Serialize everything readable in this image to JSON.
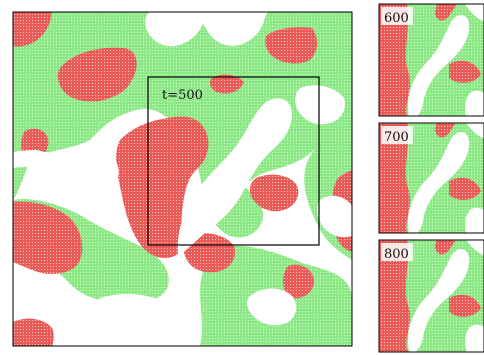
{
  "colors": {
    "red": "#ea5a57",
    "green": "#8de886",
    "frame": "#000000",
    "background": "#ffffff"
  },
  "main_panel": {
    "time_label": "t=500"
  },
  "side_panels": [
    {
      "time_label": "600"
    },
    {
      "time_label": "700"
    },
    {
      "time_label": "800"
    }
  ]
}
